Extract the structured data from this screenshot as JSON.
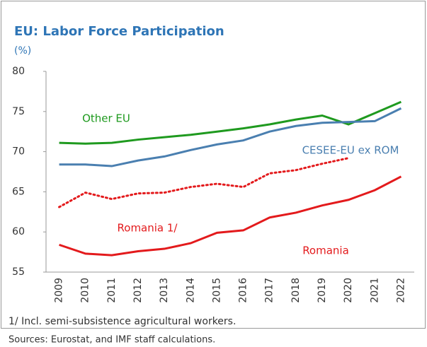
{
  "chart_data": {
    "type": "line",
    "title": "EU: Labor Force Participation",
    "y_label": "(%)",
    "categories": [
      "2009",
      "2010",
      "2011",
      "2012",
      "2013",
      "2014",
      "2015",
      "2016",
      "2017",
      "2018",
      "2019",
      "2020",
      "2021",
      "2022"
    ],
    "series": [
      {
        "name": "Other EU",
        "color": "#1f9a1f",
        "line_style": "solid",
        "values": [
          71.1,
          71.0,
          71.1,
          71.5,
          71.8,
          72.1,
          72.5,
          72.9,
          73.4,
          74.0,
          74.5,
          73.4,
          74.8,
          76.2
        ]
      },
      {
        "name": "CESEE-EU ex ROM",
        "color": "#4a7fb0",
        "line_style": "solid",
        "values": [
          68.4,
          68.4,
          68.2,
          68.9,
          69.4,
          70.2,
          70.9,
          71.4,
          72.5,
          73.2,
          73.6,
          73.7,
          73.8,
          75.4
        ]
      },
      {
        "name": "Romania 1/",
        "color": "#e31a1c",
        "line_style": "dotted",
        "values": [
          63.1,
          64.9,
          64.1,
          64.8,
          64.9,
          65.6,
          66.0,
          65.6,
          67.3,
          67.7,
          68.5,
          69.2,
          null,
          null
        ]
      },
      {
        "name": "Romania",
        "color": "#e31a1c",
        "line_style": "solid",
        "values": [
          58.4,
          57.3,
          57.1,
          57.6,
          57.9,
          58.6,
          59.9,
          60.2,
          61.8,
          62.4,
          63.3,
          64.0,
          65.2,
          66.9
        ]
      }
    ],
    "ylim": [
      55,
      80
    ],
    "yticks": [
      55,
      60,
      65,
      70,
      75,
      80
    ],
    "grid": false,
    "footnote": "1/ Incl. semi-subsistence agricultural workers.",
    "source": "Sources: Eurostat, and IMF staff calculations."
  }
}
